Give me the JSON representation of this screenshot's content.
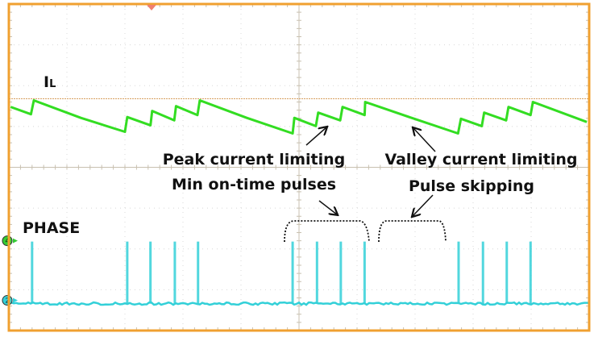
{
  "chart_data": {
    "type": "line",
    "title": "",
    "xlabel": "",
    "ylabel": "",
    "xlim": [
      0,
      10
    ],
    "ylim": [
      -4,
      4
    ],
    "grid": true,
    "series": [
      {
        "name": "IL",
        "subscript": "L",
        "label_main": "I",
        "color": "#33dd22",
        "x": [
          0.03,
          0.38,
          0.43,
          1.24,
          2.0,
          2.04,
          2.44,
          2.47,
          2.85,
          2.88,
          3.25,
          3.29,
          4.1,
          4.89,
          4.92,
          5.29,
          5.33,
          5.71,
          5.75,
          6.13,
          6.14,
          6.94,
          7.74,
          7.79,
          8.15,
          8.19,
          8.57,
          8.61,
          8.99,
          9.03,
          9.96
        ],
        "y": [
          1.48,
          1.3,
          1.64,
          1.21,
          0.87,
          1.23,
          1.03,
          1.38,
          1.15,
          1.5,
          1.28,
          1.64,
          1.21,
          0.83,
          1.21,
          1.01,
          1.34,
          1.15,
          1.48,
          1.28,
          1.6,
          1.21,
          0.83,
          1.19,
          1.01,
          1.34,
          1.15,
          1.48,
          1.28,
          1.6,
          1.11
        ]
      },
      {
        "name": "PHASE",
        "color": "#33d0d8",
        "baseline": -3.34,
        "pulse_top": -1.82,
        "pulse_x": [
          0.4,
          2.04,
          2.44,
          2.86,
          3.26,
          4.89,
          5.31,
          5.72,
          6.13,
          7.75,
          8.17,
          8.58,
          8.99
        ]
      }
    ],
    "reference_level": 1.68,
    "channel_markers": [
      {
        "label": "4",
        "level": -1.8,
        "color": "#33cc33"
      },
      {
        "label": "2",
        "level": -3.26,
        "color": "#33d0d8"
      }
    ],
    "annotations": [
      {
        "line1": "Peak current limiting",
        "line2": "Min on-time pulses"
      },
      {
        "line1": "Valley current limiting",
        "line2": "Pulse skipping"
      }
    ],
    "frame_color": "#f0a030"
  }
}
